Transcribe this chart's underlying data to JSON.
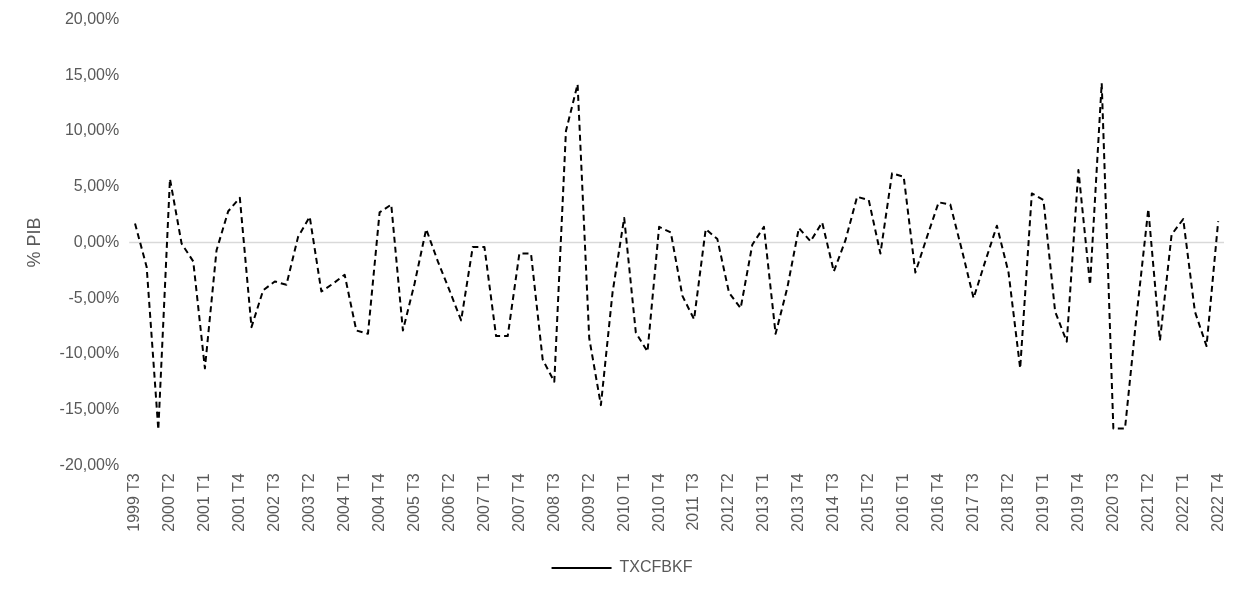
{
  "chart_data": {
    "type": "line",
    "ylabel": "% PIB",
    "categories": [
      "1999 T3",
      null,
      null,
      "2000 T2",
      null,
      null,
      "2001 T1",
      null,
      null,
      "2001 T4",
      null,
      null,
      "2002 T3",
      null,
      null,
      "2003 T2",
      null,
      null,
      "2004 T1",
      null,
      null,
      "2004 T4",
      null,
      null,
      "2005 T3",
      null,
      null,
      "2006 T2",
      null,
      null,
      "2007 T1",
      null,
      null,
      "2007 T4",
      null,
      null,
      "2008 T3",
      null,
      null,
      "2009 T2",
      null,
      null,
      "2010 T1",
      null,
      null,
      "2010 T4",
      null,
      null,
      "2011 T3",
      null,
      null,
      "2012 T2",
      null,
      null,
      "2013 T1",
      null,
      null,
      "2013 T4",
      null,
      null,
      "2014 T3",
      null,
      null,
      "2015 T2",
      null,
      null,
      "2016 T1",
      null,
      null,
      "2016 T4",
      null,
      null,
      "2017 T3",
      null,
      null,
      "2018 T2",
      null,
      null,
      "2019 T1",
      null,
      null,
      "2019 T4",
      null,
      null,
      "2020 T3",
      null,
      null,
      "2021 T2",
      null,
      null,
      "2022 T1",
      null,
      null,
      "2022 T4"
    ],
    "series": [
      {
        "name": "TXCFBKF",
        "color": "#000000",
        "values": [
          1.7,
          -2.2,
          -16.8,
          5.7,
          -0.1,
          -1.7,
          -11.3,
          -0.7,
          2.8,
          4.0,
          -7.6,
          -4.3,
          -3.5,
          -3.8,
          0.5,
          2.3,
          -4.4,
          -3.7,
          -2.9,
          -7.9,
          -8.2,
          2.7,
          3.4,
          -7.9,
          -3.7,
          1.2,
          -1.7,
          -4.3,
          -7.0,
          -0.4,
          -0.4,
          -8.4,
          -8.4,
          -1.0,
          -1.0,
          -10.5,
          -12.5,
          10.0,
          14.2,
          -8.6,
          -14.6,
          -4.5,
          2.2,
          -8.1,
          -9.8,
          1.4,
          0.9,
          -4.8,
          -6.9,
          1.2,
          0.3,
          -4.5,
          -5.9,
          -0.2,
          1.4,
          -8.2,
          -4.1,
          1.3,
          0.1,
          1.8,
          -2.6,
          0.2,
          4.1,
          3.8,
          -1.0,
          6.2,
          5.9,
          -2.7,
          0.5,
          3.6,
          3.4,
          -0.7,
          -5.0,
          -1.7,
          1.5,
          -2.7,
          -11.3,
          4.4,
          3.8,
          -6.2,
          -8.9,
          6.5,
          -3.8,
          14.3,
          -16.7,
          -16.7,
          -6.5,
          3.0,
          -8.8,
          0.7,
          2.1,
          -6.2,
          -9.3,
          1.9
        ]
      }
    ],
    "ylim": [
      -20,
      20
    ],
    "yticks": [
      {
        "value": -20,
        "label": "-20,00%"
      },
      {
        "value": -15,
        "label": "-15,00%"
      },
      {
        "value": -10,
        "label": "-10,00%"
      },
      {
        "value": -5,
        "label": "-5,00%"
      },
      {
        "value": 0,
        "label": "0,00%"
      },
      {
        "value": 5,
        "label": "5,00%"
      },
      {
        "value": 10,
        "label": "10,00%"
      },
      {
        "value": 15,
        "label": "15,00%"
      },
      {
        "value": 20,
        "label": "20,00%"
      }
    ],
    "ref_lines": [
      {
        "axis": "y",
        "value": 0,
        "color": "#d9d9d9"
      }
    ],
    "grid": false,
    "legend": "bottom",
    "marker": "none",
    "line_style": "dashed"
  }
}
